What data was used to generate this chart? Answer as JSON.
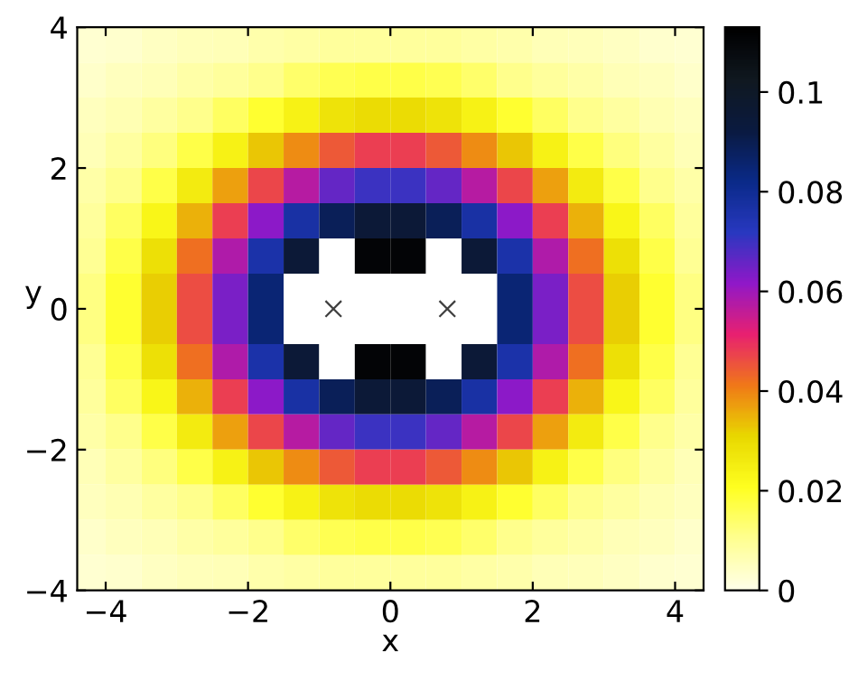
{
  "chart_data": {
    "type": "heatmap",
    "xlabel": "x",
    "ylabel": "y",
    "x": [
      -4.25,
      -3.75,
      -3.25,
      -2.75,
      -2.25,
      -1.75,
      -1.25,
      -0.75,
      -0.25,
      0.25,
      0.75,
      1.25,
      1.75,
      2.25,
      2.75,
      3.25,
      3.75,
      4.25
    ],
    "y": [
      3.75,
      3.25,
      2.75,
      2.25,
      1.75,
      1.25,
      0.75,
      0.25,
      -0.25,
      -0.75,
      -1.25,
      -1.75,
      -2.25,
      -2.75,
      -3.25,
      -3.75
    ],
    "cells": [
      [
        0.0029,
        0.0035,
        0.0045,
        0.0053,
        0.006,
        0.0073,
        0.0083,
        0.0089,
        0.0092,
        0.0092,
        0.0089,
        0.0083,
        0.0073,
        0.006,
        0.0053,
        0.0045,
        0.0035,
        0.0029
      ],
      [
        0.0038,
        0.0049,
        0.0059,
        0.0076,
        0.0092,
        0.011,
        0.014,
        0.016,
        0.017,
        0.017,
        0.016,
        0.014,
        0.011,
        0.0092,
        0.0076,
        0.0059,
        0.0049,
        0.0038
      ],
      [
        0.005,
        0.0062,
        0.0085,
        0.011,
        0.015,
        0.019,
        0.024,
        0.028,
        0.03,
        0.03,
        0.028,
        0.024,
        0.019,
        0.015,
        0.011,
        0.0085,
        0.0062,
        0.005
      ],
      [
        0.006,
        0.0086,
        0.012,
        0.017,
        0.024,
        0.033,
        0.039,
        0.045,
        0.048,
        0.048,
        0.045,
        0.039,
        0.033,
        0.024,
        0.017,
        0.012,
        0.0086,
        0.006
      ],
      [
        0.0078,
        0.011,
        0.017,
        0.026,
        0.037,
        0.047,
        0.057,
        0.066,
        0.07,
        0.07,
        0.066,
        0.057,
        0.047,
        0.037,
        0.026,
        0.017,
        0.011,
        0.0078
      ],
      [
        0.0092,
        0.015,
        0.023,
        0.035,
        0.048,
        0.062,
        0.077,
        0.089,
        0.095,
        0.095,
        0.089,
        0.077,
        0.062,
        0.048,
        0.035,
        0.023,
        0.015,
        0.0092
      ],
      [
        0.01,
        0.017,
        0.029,
        0.042,
        0.058,
        0.076,
        0.095,
        null,
        0.111,
        0.111,
        null,
        0.095,
        0.076,
        0.058,
        0.042,
        0.029,
        0.017,
        0.01
      ],
      [
        0.0116,
        0.019,
        0.032,
        0.046,
        0.064,
        0.085,
        null,
        null,
        null,
        null,
        null,
        null,
        0.085,
        0.064,
        0.046,
        0.032,
        0.019,
        0.0116
      ],
      [
        0.0116,
        0.019,
        0.032,
        0.046,
        0.064,
        0.085,
        null,
        null,
        null,
        null,
        null,
        null,
        0.085,
        0.064,
        0.046,
        0.032,
        0.019,
        0.0116
      ],
      [
        0.01,
        0.017,
        0.029,
        0.042,
        0.058,
        0.076,
        0.095,
        null,
        0.111,
        0.111,
        null,
        0.095,
        0.076,
        0.058,
        0.042,
        0.029,
        0.017,
        0.01
      ],
      [
        0.0092,
        0.015,
        0.023,
        0.035,
        0.048,
        0.062,
        0.077,
        0.089,
        0.095,
        0.095,
        0.089,
        0.077,
        0.062,
        0.048,
        0.035,
        0.023,
        0.015,
        0.0092
      ],
      [
        0.0078,
        0.011,
        0.017,
        0.026,
        0.037,
        0.047,
        0.057,
        0.066,
        0.07,
        0.07,
        0.066,
        0.057,
        0.047,
        0.037,
        0.026,
        0.017,
        0.011,
        0.0078
      ],
      [
        0.006,
        0.0086,
        0.012,
        0.017,
        0.024,
        0.033,
        0.039,
        0.045,
        0.048,
        0.048,
        0.045,
        0.039,
        0.033,
        0.024,
        0.017,
        0.012,
        0.0086,
        0.006
      ],
      [
        0.005,
        0.0062,
        0.0085,
        0.011,
        0.015,
        0.019,
        0.024,
        0.028,
        0.03,
        0.03,
        0.028,
        0.024,
        0.019,
        0.015,
        0.011,
        0.0085,
        0.0062,
        0.005
      ],
      [
        0.0038,
        0.0049,
        0.0059,
        0.0076,
        0.0092,
        0.011,
        0.014,
        0.016,
        0.017,
        0.017,
        0.016,
        0.014,
        0.011,
        0.0092,
        0.0076,
        0.0059,
        0.0049,
        0.0038
      ],
      [
        0.0029,
        0.0035,
        0.0045,
        0.0053,
        0.006,
        0.0073,
        0.0083,
        0.0089,
        0.0092,
        0.0092,
        0.0089,
        0.0083,
        0.0073,
        0.006,
        0.0053,
        0.0045,
        0.0035,
        0.0029
      ]
    ],
    "colors": [
      "#ffffe8",
      "#ffff90",
      "#ffff20",
      "#e8d800",
      "#f07818",
      "#e82070",
      "#9018c8",
      "#2838c0",
      "#0a2a88",
      "#0a1a40",
      "#101820",
      "#000000"
    ],
    "clim": [
      0,
      0.113
    ],
    "cticks": [
      0,
      0.02,
      0.04,
      0.06,
      0.08,
      0.1
    ],
    "xlim": [
      -4.4,
      4.4
    ],
    "ylim": [
      -4,
      4
    ],
    "xticks": [
      -4,
      -2,
      0,
      2,
      4
    ],
    "yticks": [
      -4,
      -2,
      0,
      2,
      4
    ],
    "grid": false,
    "series": [
      {
        "type": "scatter",
        "x": [
          -0.8,
          0.8
        ],
        "values": [
          0,
          0
        ],
        "color": "#404040",
        "marker": "cross"
      }
    ]
  }
}
